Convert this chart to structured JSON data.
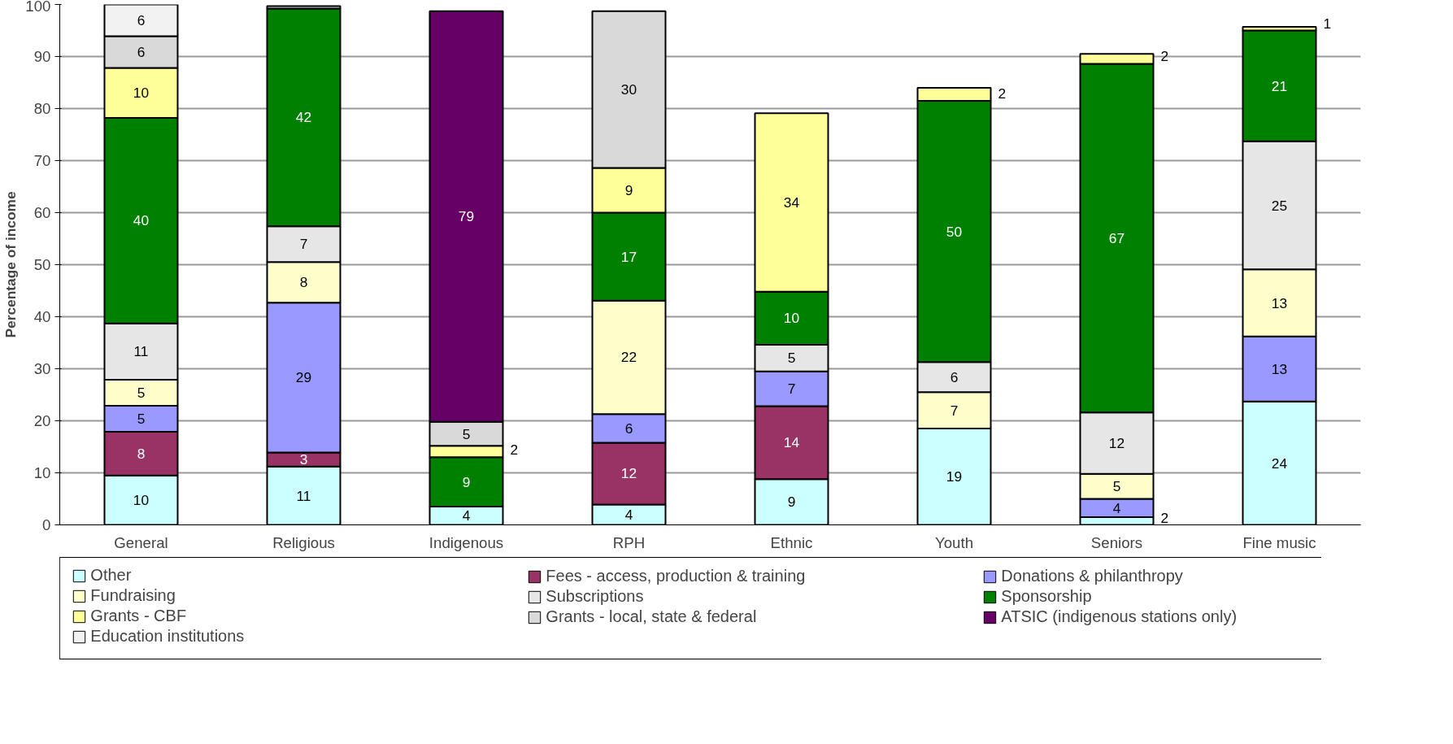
{
  "chart_data": {
    "type": "bar",
    "stacked": true,
    "ylabel": "Percentage of income",
    "categories": [
      "General",
      "Religious",
      "Indigenous",
      "RPH",
      "Ethnic",
      "Youth",
      "Seniors",
      "Fine music"
    ],
    "ylim": [
      0,
      100
    ],
    "yticks": [
      0,
      10,
      20,
      30,
      40,
      50,
      60,
      70,
      80,
      90,
      100
    ],
    "grid": "y",
    "legend": "bottom",
    "series": [
      {
        "name": "Other",
        "color": "#ccffff",
        "values": [
          9.5,
          11.2,
          3.5,
          3.9,
          8.8,
          18.5,
          1.5,
          23.7
        ],
        "value_labels": [
          "10",
          "11",
          "4",
          "4",
          "9",
          "19",
          "2",
          "24"
        ]
      },
      {
        "name": "Fees - access, production & training",
        "color": "#993366",
        "values": [
          8.4,
          2.7,
          null,
          11.9,
          14.0,
          null,
          null,
          null
        ],
        "value_labels": [
          "8",
          "3",
          null,
          "12",
          "14",
          null,
          null,
          null
        ]
      },
      {
        "name": "Donations & philanthropy",
        "color": "#9999ff",
        "values": [
          5.0,
          28.8,
          null,
          5.5,
          6.7,
          null,
          3.5,
          12.5
        ],
        "value_labels": [
          "5",
          "29",
          null,
          "6",
          "7",
          null,
          "4",
          "13"
        ]
      },
      {
        "name": "Fundraising",
        "color": "#ffffcc",
        "values": [
          5.0,
          7.8,
          null,
          21.8,
          null,
          7.0,
          4.8,
          12.9
        ],
        "value_labels": [
          "5",
          "8",
          null,
          "22",
          null,
          "7",
          "5",
          "13"
        ]
      },
      {
        "name": "Subscriptions",
        "color": "#e6e6e6",
        "values": [
          10.8,
          6.9,
          null,
          null,
          5.1,
          5.8,
          11.8,
          24.6
        ],
        "value_labels": [
          "11",
          "7",
          null,
          null,
          "5",
          "6",
          "12",
          "25"
        ]
      },
      {
        "name": "Sponsorship",
        "color": "#008000",
        "values": [
          39.5,
          41.8,
          9.5,
          16.9,
          10.2,
          50.2,
          67.0,
          21.3
        ],
        "value_labels": [
          "40",
          "42",
          "9",
          "17",
          "10",
          "50",
          "67",
          "21"
        ]
      },
      {
        "name": "Grants - CBF",
        "color": "#ffff99",
        "values": [
          9.6,
          null,
          2.2,
          8.6,
          34.3,
          2.5,
          1.9,
          0.7
        ],
        "value_labels": [
          "10",
          null,
          "2",
          "9",
          "34",
          "2",
          "2",
          "1"
        ]
      },
      {
        "name": "Grants - local, state & federal",
        "color": "#d9d9d9",
        "values": [
          6.1,
          0.5,
          4.6,
          30.1,
          null,
          null,
          null,
          null
        ],
        "value_labels": [
          "6",
          null,
          "5",
          "30",
          null,
          null,
          null,
          null
        ]
      },
      {
        "name": "ATSIC (indigenous stations only)",
        "color": "#660066",
        "values": [
          null,
          null,
          78.9,
          null,
          null,
          null,
          null,
          null
        ],
        "value_labels": [
          null,
          null,
          "79",
          null,
          null,
          null,
          null,
          null
        ]
      },
      {
        "name": "Education institutions",
        "color": "#f2f2f2",
        "values": [
          6.1,
          null,
          null,
          null,
          null,
          null,
          null,
          null
        ],
        "value_labels": [
          "6",
          null,
          null,
          null,
          null,
          null,
          null,
          null
        ]
      }
    ]
  }
}
